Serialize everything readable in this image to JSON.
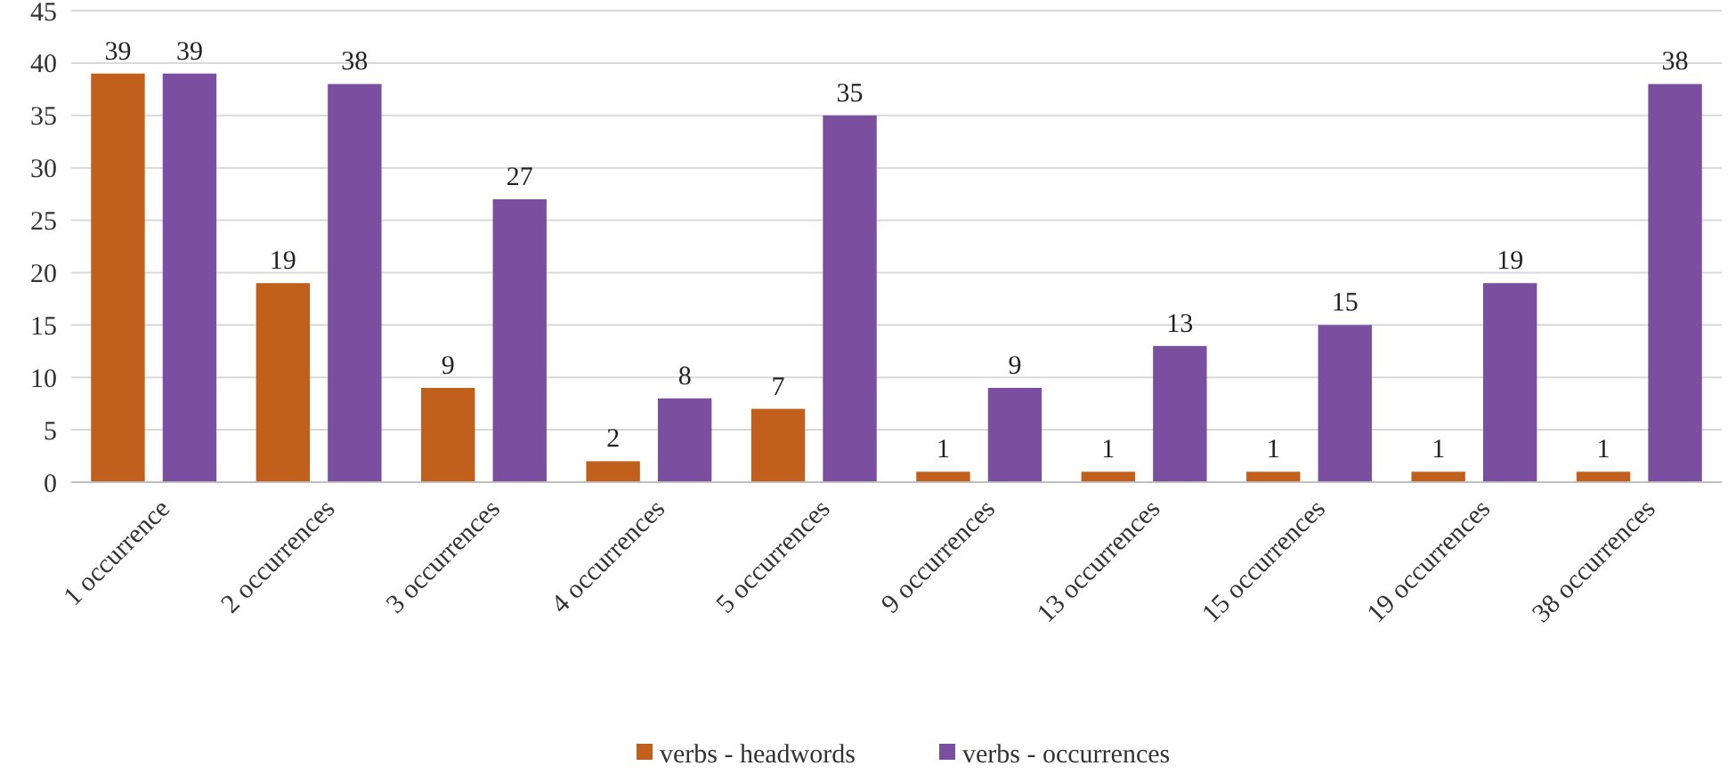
{
  "chart_data": {
    "type": "bar",
    "categories": [
      "1 occurrence",
      "2 occurrences",
      "3 occurrences",
      "4 occurrences",
      "5 occurrences",
      "9 occurrences",
      "13 occurrences",
      "15 occurrences",
      "19 occurrences",
      "38 occurrences"
    ],
    "series": [
      {
        "name": "verbs - headwords",
        "color": "#c0601c",
        "values": [
          39,
          19,
          9,
          2,
          7,
          1,
          1,
          1,
          1,
          1
        ]
      },
      {
        "name": "verbs - occurrences",
        "color": "#7b4fa0",
        "values": [
          39,
          38,
          27,
          8,
          35,
          9,
          13,
          15,
          19,
          38
        ]
      }
    ],
    "ylim": [
      0,
      45
    ],
    "yticks": [
      0,
      5,
      10,
      15,
      20,
      25,
      30,
      35,
      40,
      45
    ],
    "grid": "y",
    "legend": "bottom",
    "data_labels": true
  }
}
